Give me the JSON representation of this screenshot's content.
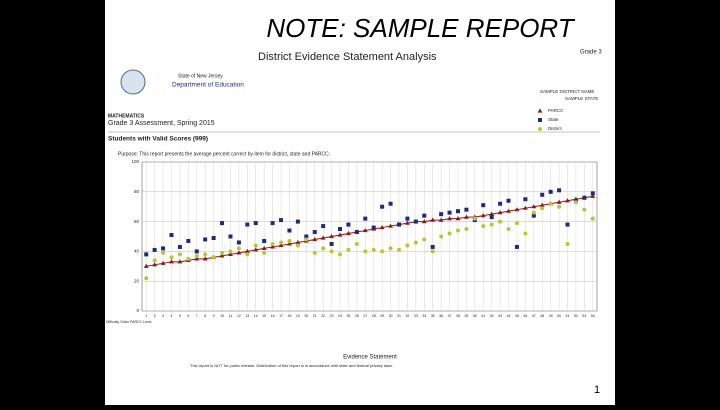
{
  "note": "NOTE: SAMPLE REPORT",
  "report": {
    "title": "District Evidence Statement Analysis",
    "grade": "Grade 3",
    "state_name": "State of New Jersey",
    "department": "Department of Education",
    "subject": "MATHEMATICS",
    "assessment": "Grade 3 Assessment, Spring 2015",
    "district_name": "SAMPLE DISTRICT NAME",
    "state_label": "SAMPLE STATE",
    "students": "Students with Valid Scores (999)",
    "purpose": "Purpose: This report presents the average percent correct by item for district, state and PARCC.",
    "left_label": "Difficulty Order PARCC Level",
    "footer": "This report is NOT for public release. Distribution of this report is in accordance with state and federal privacy laws.",
    "page": "1"
  },
  "chart_data": {
    "type": "line",
    "x_label": "Evidence Statement",
    "categories": [
      "1",
      "2",
      "3",
      "4",
      "5",
      "6",
      "7",
      "8",
      "9",
      "10",
      "11",
      "12",
      "13",
      "14",
      "15",
      "16",
      "17",
      "18",
      "19",
      "20",
      "21",
      "22",
      "23",
      "24",
      "25",
      "26",
      "27",
      "28",
      "29",
      "30",
      "31",
      "32",
      "33",
      "34",
      "35",
      "36",
      "37",
      "38",
      "39",
      "40",
      "41",
      "42",
      "43",
      "44",
      "45",
      "46",
      "47",
      "48",
      "49",
      "50",
      "51",
      "52",
      "53",
      "54"
    ],
    "series": [
      {
        "name": "PARCC",
        "color": "#8b1a1a",
        "marker": "triangle",
        "line": true,
        "values": [
          30,
          31,
          32,
          33,
          33,
          34,
          35,
          35,
          36,
          37,
          38,
          39,
          40,
          41,
          42,
          43,
          44,
          45,
          46,
          47,
          48,
          49,
          50,
          51,
          52,
          53,
          54,
          55,
          56,
          57,
          58,
          59,
          60,
          60,
          61,
          61,
          62,
          62,
          63,
          63,
          64,
          65,
          66,
          67,
          68,
          69,
          70,
          71,
          72,
          73,
          74,
          75,
          76,
          77
        ]
      },
      {
        "name": "State",
        "color": "#1f2a7a",
        "marker": "square",
        "line": false,
        "values": [
          38,
          41,
          42,
          51,
          43,
          47,
          40,
          48,
          49,
          59,
          50,
          46,
          58,
          59,
          47,
          59,
          61,
          54,
          60,
          50,
          53,
          57,
          45,
          55,
          58,
          53,
          62,
          56,
          70,
          72,
          58,
          62,
          60,
          64,
          43,
          65,
          66,
          67,
          68,
          61,
          71,
          63,
          72,
          74,
          43,
          75,
          64,
          78,
          80,
          81,
          58,
          74,
          76,
          79
        ]
      },
      {
        "name": "District",
        "color": "#b5c832",
        "marker": "circle",
        "line": false,
        "values": [
          22,
          34,
          39,
          36,
          38,
          35,
          37,
          38,
          36,
          39,
          40,
          42,
          38,
          44,
          39,
          45,
          46,
          47,
          44,
          48,
          39,
          42,
          40,
          38,
          41,
          45,
          40,
          41,
          40,
          42,
          41,
          44,
          46,
          48,
          40,
          50,
          52,
          54,
          55,
          62,
          57,
          58,
          60,
          55,
          59,
          52,
          66,
          69,
          72,
          70,
          45,
          73,
          68,
          62
        ]
      }
    ],
    "ylim": [
      0,
      100
    ],
    "yticks": [
      0,
      20,
      40,
      60,
      80,
      100
    ],
    "grid": true
  }
}
